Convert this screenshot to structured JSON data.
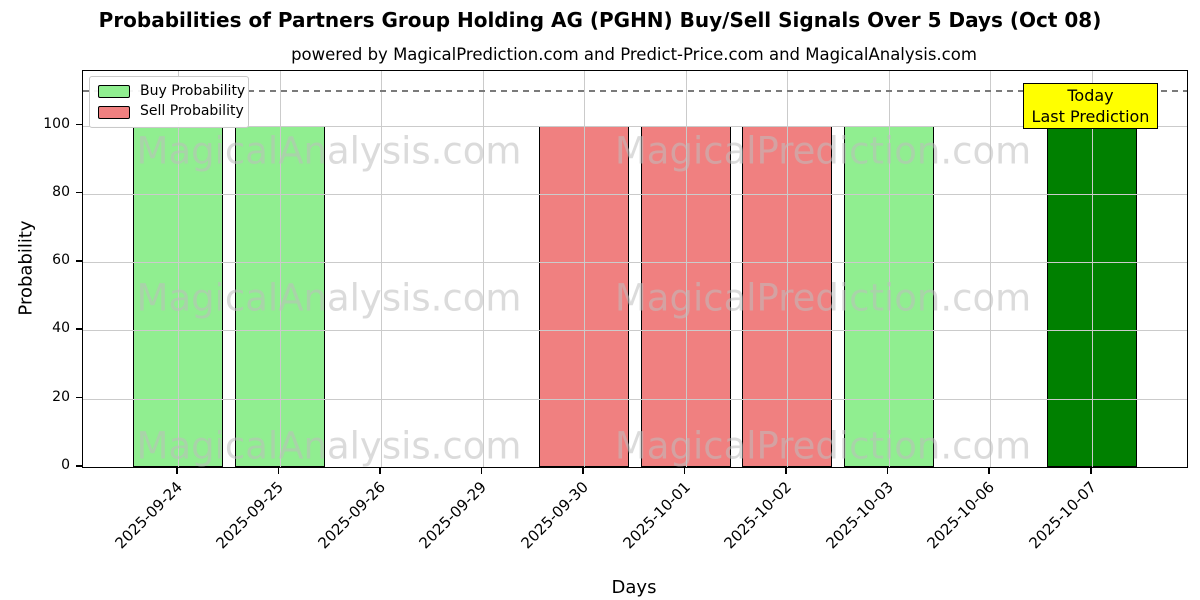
{
  "title": "Probabilities of Partners Group Holding AG (PGHN) Buy/Sell Signals Over 5 Days (Oct 08)",
  "subtitle": "powered by MagicalPrediction.com and Predict-Price.com and MagicalAnalysis.com",
  "legend": {
    "items": [
      {
        "label": "Buy Probability",
        "color": "#90ee90"
      },
      {
        "label": "Sell Probability",
        "color": "#f08080"
      }
    ]
  },
  "annotation": {
    "line1": "Today",
    "line2": "Last Prediction",
    "bg": "#ffff00"
  },
  "watermarks": {
    "left_text": "MagicalAnalysis.com",
    "right_text": "MagicalPrediction.com"
  },
  "chart_data": {
    "type": "bar",
    "title": "Probabilities of Partners Group Holding AG (PGHN) Buy/Sell Signals Over 5 Days (Oct 08)",
    "subtitle": "powered by MagicalPrediction.com and Predict-Price.com and MagicalAnalysis.com",
    "xlabel": "Days",
    "ylabel": "Probability",
    "categories": [
      "2025-09-24",
      "2025-09-25",
      "2025-09-26",
      "2025-09-29",
      "2025-09-30",
      "2025-10-01",
      "2025-10-02",
      "2025-10-03",
      "2025-10-06",
      "2025-10-07"
    ],
    "series": [
      {
        "name": "Buy Probability",
        "color": "#90ee90",
        "values": [
          100,
          100,
          0,
          0,
          0,
          0,
          0,
          100,
          0,
          0
        ]
      },
      {
        "name": "Sell Probability",
        "color": "#f08080",
        "values": [
          0,
          0,
          0,
          0,
          100,
          100,
          100,
          0,
          0,
          0
        ]
      },
      {
        "name": "Today Last Prediction",
        "color": "#008000",
        "values": [
          0,
          0,
          0,
          0,
          0,
          0,
          0,
          0,
          0,
          100
        ]
      }
    ],
    "ylim": [
      0,
      116
    ],
    "yticks": [
      0,
      20,
      40,
      60,
      80,
      100
    ],
    "threshold_line": {
      "y": 110,
      "style": "dashed",
      "color": "#7a7a7a"
    },
    "grid": true,
    "legend_position": "upper left",
    "bar_edge_color": "#000000"
  }
}
